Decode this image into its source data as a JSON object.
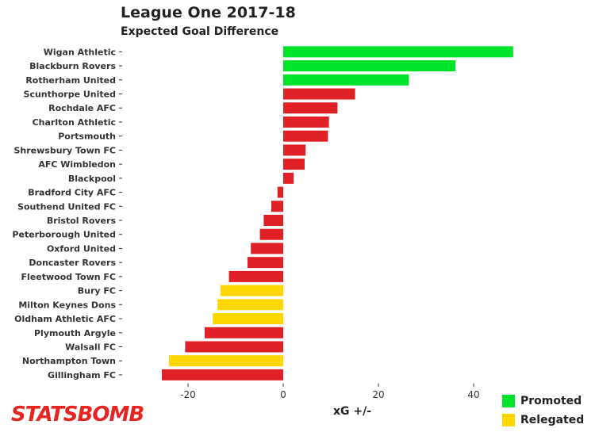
{
  "chart_data": {
    "type": "bar",
    "orientation": "horizontal",
    "title": "League One 2017-18",
    "subtitle": "Expected Goal Difference",
    "xlabel": "xG +/-",
    "xlim": [
      -26,
      49
    ],
    "xticks": [
      -20,
      0,
      20,
      40
    ],
    "grid": false,
    "legend_position": "bottom-right",
    "legend": [
      {
        "label": "Promoted",
        "color": "#00e32b"
      },
      {
        "label": "Relegated",
        "color": "#ffd700"
      }
    ],
    "colors": {
      "promoted": "#00e32b",
      "relegated": "#ffd700",
      "other": "#df2127"
    },
    "categories": [
      "Wigan Athletic",
      "Blackburn Rovers",
      "Rotherham United",
      "Scunthorpe United",
      "Rochdale AFC",
      "Charlton Athletic",
      "Portsmouth",
      "Shrewsbury Town FC",
      "AFC Wimbledon",
      "Blackpool",
      "Bradford City AFC",
      "Southend United FC",
      "Bristol Rovers",
      "Peterborough United",
      "Oxford United",
      "Doncaster Rovers",
      "Fleetwood Town FC",
      "Bury FC",
      "Milton Keynes Dons",
      "Oldham Athletic AFC",
      "Plymouth Argyle",
      "Walsall FC",
      "Northampton Town",
      "Gillingham FC"
    ],
    "values": [
      48.3,
      36.2,
      26.4,
      15.1,
      11.4,
      9.6,
      9.4,
      4.7,
      4.5,
      2.2,
      -1.2,
      -2.5,
      -4.1,
      -4.9,
      -6.8,
      -7.5,
      -11.4,
      -13.2,
      -13.8,
      -14.8,
      -16.5,
      -20.6,
      -24.0,
      -25.5
    ],
    "status": [
      "promoted",
      "promoted",
      "promoted",
      "other",
      "other",
      "other",
      "other",
      "other",
      "other",
      "other",
      "other",
      "other",
      "other",
      "other",
      "other",
      "other",
      "other",
      "relegated",
      "relegated",
      "relegated",
      "other",
      "other",
      "relegated",
      "other"
    ]
  },
  "logo": {
    "text": "STATSBOMB"
  }
}
